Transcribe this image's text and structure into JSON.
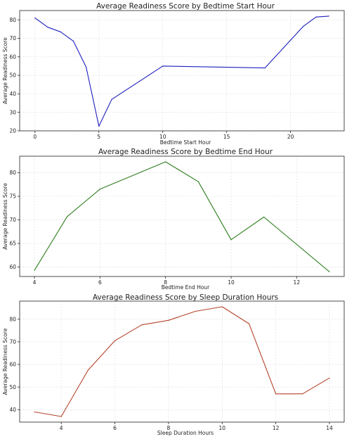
{
  "chart_data": [
    {
      "type": "line",
      "title": "Average Readiness Score by Bedtime Start Hour",
      "xlabel": "Bedtime Start Hour",
      "ylabel": "Average Readiness Score",
      "xlim": [
        -1.2,
        24.2
      ],
      "ylim": [
        20,
        85
      ],
      "xticks": [
        0,
        5,
        10,
        15,
        20
      ],
      "yticks": [
        20,
        30,
        40,
        50,
        60,
        70,
        80
      ],
      "grid": true,
      "color": "#1f1fbf",
      "series": [
        {
          "x": [
            0,
            1,
            2,
            3,
            4,
            5,
            6,
            10,
            18,
            21,
            22,
            23
          ],
          "y": [
            81,
            76,
            73.5,
            68.5,
            54.5,
            22.5,
            37,
            55,
            54,
            76.5,
            81.5,
            82
          ]
        }
      ]
    },
    {
      "type": "line",
      "title": "Average Readiness Score by Bedtime End Hour",
      "xlabel": "Bedtime End Hour",
      "ylabel": "Average Readiness Score",
      "xlim": [
        3.55,
        13.45
      ],
      "ylim": [
        58,
        83.5
      ],
      "xticks": [
        4,
        6,
        8,
        10,
        12
      ],
      "yticks": [
        60,
        65,
        70,
        75,
        80
      ],
      "grid": true,
      "color": "#2e7d1f",
      "series": [
        {
          "x": [
            4,
            5,
            6,
            8,
            9,
            10,
            11,
            13
          ],
          "y": [
            59.3,
            70.7,
            76.5,
            82.3,
            78.1,
            65.8,
            70.6,
            59
          ]
        }
      ]
    },
    {
      "type": "line",
      "title": "Average Readiness Score by Sleep Duration Hours",
      "xlabel": "Sleep Duration Hours",
      "ylabel": "Average Readiness Score",
      "xlim": [
        2.45,
        14.55
      ],
      "ylim": [
        34.5,
        88
      ],
      "xticks": [
        4,
        6,
        8,
        10,
        12,
        14
      ],
      "yticks": [
        40,
        50,
        60,
        70,
        80
      ],
      "grid": true,
      "color": "#b5432b",
      "series": [
        {
          "x": [
            3,
            4,
            5,
            6,
            7,
            8,
            9,
            10,
            11,
            12,
            13,
            14
          ],
          "y": [
            39,
            37,
            57.5,
            70.5,
            77.5,
            79.5,
            83.5,
            85.5,
            78,
            47,
            47,
            54
          ]
        }
      ]
    }
  ]
}
